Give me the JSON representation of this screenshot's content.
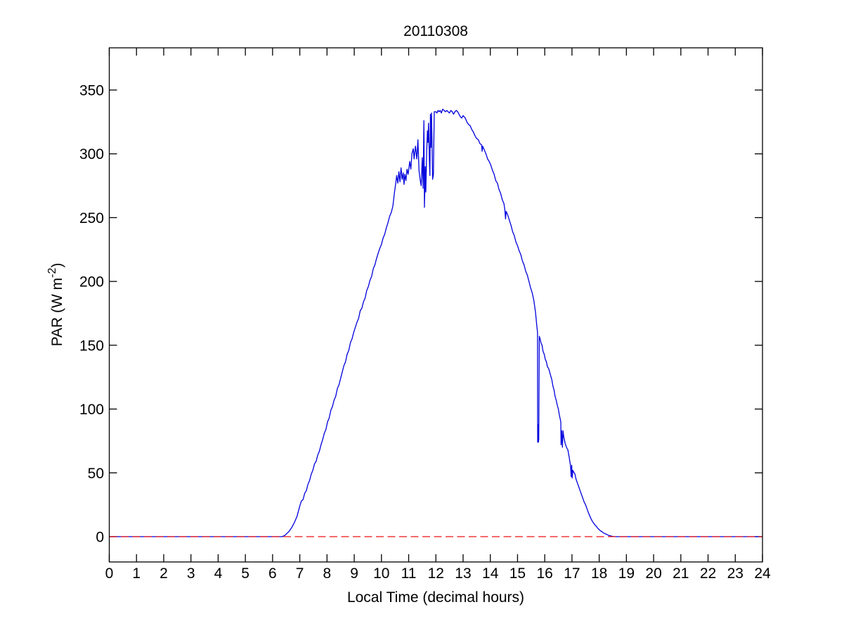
{
  "chart_data": {
    "type": "line",
    "title": "20110308",
    "xlabel": "Local Time (decimal hours)",
    "ylabel_parts": {
      "prefix": "PAR (W m",
      "sup": "-2",
      "suffix": ")"
    },
    "xlim": [
      0,
      24
    ],
    "ylim": [
      -20,
      383
    ],
    "xticks": [
      0,
      1,
      2,
      3,
      4,
      5,
      6,
      7,
      8,
      9,
      10,
      11,
      12,
      13,
      14,
      15,
      16,
      17,
      18,
      19,
      20,
      21,
      22,
      23,
      24
    ],
    "yticks": [
      0,
      50,
      100,
      150,
      200,
      250,
      300,
      350
    ],
    "grid": false,
    "legend": false,
    "series": [
      {
        "name": "PAR",
        "color": "#0000dd",
        "style": "solid",
        "points": [
          [
            0,
            0
          ],
          [
            1,
            0
          ],
          [
            2,
            0
          ],
          [
            3,
            0
          ],
          [
            4,
            0
          ],
          [
            5,
            0
          ],
          [
            6,
            0
          ],
          [
            6.35,
            0
          ],
          [
            6.4,
            0.5
          ],
          [
            6.45,
            1
          ],
          [
            6.5,
            2
          ],
          [
            6.55,
            3
          ],
          [
            6.6,
            4
          ],
          [
            6.65,
            5.5
          ],
          [
            6.7,
            7
          ],
          [
            6.75,
            9
          ],
          [
            6.8,
            11
          ],
          [
            6.85,
            13.5
          ],
          [
            6.9,
            16
          ],
          [
            6.95,
            20
          ],
          [
            7.0,
            24
          ],
          [
            7.06,
            28
          ],
          [
            7.12,
            29
          ],
          [
            7.18,
            34
          ],
          [
            7.24,
            36
          ],
          [
            7.3,
            41
          ],
          [
            7.36,
            44
          ],
          [
            7.42,
            49
          ],
          [
            7.48,
            52
          ],
          [
            7.54,
            57
          ],
          [
            7.6,
            59
          ],
          [
            7.66,
            64
          ],
          [
            7.72,
            67
          ],
          [
            7.78,
            72
          ],
          [
            7.84,
            76
          ],
          [
            7.9,
            81
          ],
          [
            7.96,
            84
          ],
          [
            8.02,
            90
          ],
          [
            8.08,
            93
          ],
          [
            8.14,
            99
          ],
          [
            8.2,
            102
          ],
          [
            8.26,
            107
          ],
          [
            8.32,
            110
          ],
          [
            8.38,
            116
          ],
          [
            8.44,
            119
          ],
          [
            8.5,
            124
          ],
          [
            8.56,
            129
          ],
          [
            8.62,
            134
          ],
          [
            8.68,
            137
          ],
          [
            8.74,
            143
          ],
          [
            8.8,
            146
          ],
          [
            8.86,
            152
          ],
          [
            8.92,
            155
          ],
          [
            8.98,
            160
          ],
          [
            9.04,
            164
          ],
          [
            9.1,
            168
          ],
          [
            9.16,
            171
          ],
          [
            9.22,
            177
          ],
          [
            9.28,
            179
          ],
          [
            9.34,
            184
          ],
          [
            9.4,
            187
          ],
          [
            9.46,
            193
          ],
          [
            9.52,
            196
          ],
          [
            9.58,
            201
          ],
          [
            9.64,
            204
          ],
          [
            9.7,
            210
          ],
          [
            9.76,
            213
          ],
          [
            9.82,
            218
          ],
          [
            9.88,
            222
          ],
          [
            9.94,
            226
          ],
          [
            10.0,
            229
          ],
          [
            10.06,
            234
          ],
          [
            10.12,
            237
          ],
          [
            10.18,
            242
          ],
          [
            10.24,
            246
          ],
          [
            10.3,
            251
          ],
          [
            10.36,
            254
          ],
          [
            10.42,
            259
          ],
          [
            10.48,
            270
          ],
          [
            10.52,
            276
          ],
          [
            10.56,
            283
          ],
          [
            10.6,
            277
          ],
          [
            10.64,
            286
          ],
          [
            10.68,
            278
          ],
          [
            10.72,
            289
          ],
          [
            10.76,
            280
          ],
          [
            10.8,
            285
          ],
          [
            10.83,
            276
          ],
          [
            10.86,
            284
          ],
          [
            10.9,
            279
          ],
          [
            10.94,
            288
          ],
          [
            10.98,
            284
          ],
          [
            11.04,
            294
          ],
          [
            11.08,
            288
          ],
          [
            11.12,
            300
          ],
          [
            11.17,
            304
          ],
          [
            11.2,
            296
          ],
          [
            11.25,
            306
          ],
          [
            11.3,
            296
          ],
          [
            11.34,
            311
          ],
          [
            11.38,
            287
          ],
          [
            11.42,
            280
          ],
          [
            11.46,
            275
          ],
          [
            11.5,
            297
          ],
          [
            11.53,
            273
          ],
          [
            11.56,
            326
          ],
          [
            11.58,
            258
          ],
          [
            11.61,
            290
          ],
          [
            11.63,
            270
          ],
          [
            11.66,
            300
          ],
          [
            11.69,
            318
          ],
          [
            11.71,
            309
          ],
          [
            11.73,
            324
          ],
          [
            11.76,
            296
          ],
          [
            11.78,
            283
          ],
          [
            11.8,
            331
          ],
          [
            11.82,
            305
          ],
          [
            11.84,
            332
          ],
          [
            11.86,
            308
          ],
          [
            11.88,
            280
          ],
          [
            11.91,
            284
          ],
          [
            11.94,
            333
          ],
          [
            12.0,
            333
          ],
          [
            12.04,
            332
          ],
          [
            12.08,
            334
          ],
          [
            12.12,
            333
          ],
          [
            12.16,
            334
          ],
          [
            12.2,
            332
          ],
          [
            12.25,
            335
          ],
          [
            12.3,
            334
          ],
          [
            12.35,
            333
          ],
          [
            12.4,
            334
          ],
          [
            12.45,
            333
          ],
          [
            12.5,
            332
          ],
          [
            12.55,
            334
          ],
          [
            12.6,
            333
          ],
          [
            12.65,
            331
          ],
          [
            12.7,
            333
          ],
          [
            12.75,
            334
          ],
          [
            12.8,
            333
          ],
          [
            12.85,
            331
          ],
          [
            12.9,
            329
          ],
          [
            12.95,
            328
          ],
          [
            13.0,
            330
          ],
          [
            13.04,
            329
          ],
          [
            13.08,
            328
          ],
          [
            13.14,
            325
          ],
          [
            13.2,
            323
          ],
          [
            13.26,
            322
          ],
          [
            13.32,
            319
          ],
          [
            13.38,
            317
          ],
          [
            13.44,
            314
          ],
          [
            13.5,
            312
          ],
          [
            13.56,
            311
          ],
          [
            13.62,
            308
          ],
          [
            13.68,
            307
          ],
          [
            13.7,
            302
          ],
          [
            13.72,
            306
          ],
          [
            13.78,
            303
          ],
          [
            13.84,
            300
          ],
          [
            13.9,
            296
          ],
          [
            13.96,
            294
          ],
          [
            14.02,
            291
          ],
          [
            14.08,
            287
          ],
          [
            14.14,
            284
          ],
          [
            14.2,
            279
          ],
          [
            14.26,
            277
          ],
          [
            14.32,
            272
          ],
          [
            14.38,
            269
          ],
          [
            14.44,
            264
          ],
          [
            14.5,
            261
          ],
          [
            14.53,
            257
          ],
          [
            14.56,
            249
          ],
          [
            14.58,
            255
          ],
          [
            14.64,
            252
          ],
          [
            14.7,
            248
          ],
          [
            14.76,
            244
          ],
          [
            14.82,
            239
          ],
          [
            14.88,
            236
          ],
          [
            14.94,
            231
          ],
          [
            15.0,
            228
          ],
          [
            15.06,
            224
          ],
          [
            15.12,
            221
          ],
          [
            15.18,
            216
          ],
          [
            15.24,
            213
          ],
          [
            15.3,
            208
          ],
          [
            15.36,
            205
          ],
          [
            15.42,
            200
          ],
          [
            15.48,
            195
          ],
          [
            15.54,
            191
          ],
          [
            15.6,
            185
          ],
          [
            15.66,
            176
          ],
          [
            15.7,
            167
          ],
          [
            15.72,
            163
          ],
          [
            15.735,
            160
          ],
          [
            15.74,
            74
          ],
          [
            15.755,
            88
          ],
          [
            15.765,
            74
          ],
          [
            15.78,
            76
          ],
          [
            15.8,
            157
          ],
          [
            15.83,
            155
          ],
          [
            15.86,
            152
          ],
          [
            15.9,
            150
          ],
          [
            15.94,
            145
          ],
          [
            15.98,
            143
          ],
          [
            16.02,
            139
          ],
          [
            16.06,
            137
          ],
          [
            16.1,
            133
          ],
          [
            16.14,
            132
          ],
          [
            16.18,
            129
          ],
          [
            16.22,
            126
          ],
          [
            16.26,
            123
          ],
          [
            16.3,
            118
          ],
          [
            16.34,
            115
          ],
          [
            16.38,
            110
          ],
          [
            16.42,
            107
          ],
          [
            16.46,
            103
          ],
          [
            16.5,
            100
          ],
          [
            16.54,
            95
          ],
          [
            16.57,
            92
          ],
          [
            16.59,
            90
          ],
          [
            16.6,
            72
          ],
          [
            16.62,
            83
          ],
          [
            16.65,
            70
          ],
          [
            16.67,
            83
          ],
          [
            16.7,
            78
          ],
          [
            16.75,
            73
          ],
          [
            16.8,
            70
          ],
          [
            16.85,
            68
          ],
          [
            16.9,
            62
          ],
          [
            16.95,
            55
          ],
          [
            16.97,
            47
          ],
          [
            16.99,
            56
          ],
          [
            17.01,
            46
          ],
          [
            17.03,
            52
          ],
          [
            17.08,
            50
          ],
          [
            17.11,
            49
          ],
          [
            17.15,
            45
          ],
          [
            17.2,
            42
          ],
          [
            17.25,
            39
          ],
          [
            17.3,
            36
          ],
          [
            17.35,
            33
          ],
          [
            17.4,
            30
          ],
          [
            17.45,
            27
          ],
          [
            17.5,
            25
          ],
          [
            17.55,
            22
          ],
          [
            17.6,
            19
          ],
          [
            17.65,
            16.5
          ],
          [
            17.7,
            14
          ],
          [
            17.75,
            12
          ],
          [
            17.8,
            10.5
          ],
          [
            17.85,
            9
          ],
          [
            17.9,
            8
          ],
          [
            17.95,
            6.5
          ],
          [
            18.0,
            5.5
          ],
          [
            18.05,
            4.5
          ],
          [
            18.1,
            4
          ],
          [
            18.15,
            3
          ],
          [
            18.2,
            2.5
          ],
          [
            18.25,
            2
          ],
          [
            18.3,
            1.5
          ],
          [
            18.35,
            1
          ],
          [
            18.4,
            0.7
          ],
          [
            18.45,
            0.4
          ],
          [
            18.5,
            0.2
          ],
          [
            18.6,
            0
          ],
          [
            19,
            0
          ],
          [
            20,
            0
          ],
          [
            21,
            0
          ],
          [
            22,
            0
          ],
          [
            23,
            0
          ],
          [
            24,
            0
          ]
        ]
      },
      {
        "name": "zero-reference",
        "color": "#ee1111",
        "style": "dashed",
        "points": [
          [
            0,
            0
          ],
          [
            24,
            0
          ]
        ]
      }
    ]
  },
  "layout_colors": {
    "axis": "#000000",
    "background": "#ffffff"
  }
}
